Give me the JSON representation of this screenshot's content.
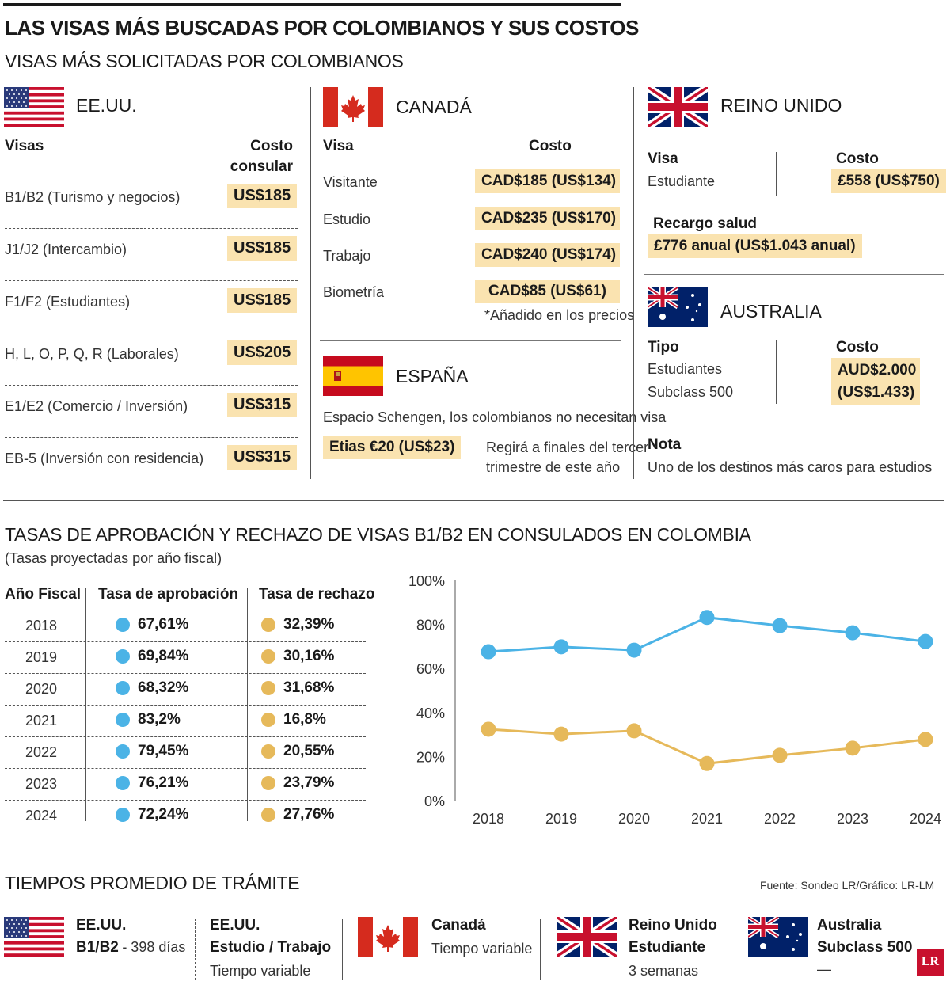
{
  "title": "LAS VISAS MÁS BUSCADAS POR COLOMBIANOS Y SUS COSTOS",
  "section1_title": "VISAS MÁS SOLICITADAS POR COLOMBIANOS",
  "usa": {
    "country": "EE.UU.",
    "col_visa": "Visas",
    "col_cost_1": "Costo",
    "col_cost_2": "consular",
    "rows": [
      {
        "visa": "B1/B2 (Turismo y negocios)",
        "cost": "US$185"
      },
      {
        "visa": "J1/J2 (Intercambio)",
        "cost": "US$185"
      },
      {
        "visa": "F1/F2 (Estudiantes)",
        "cost": "US$185"
      },
      {
        "visa": "H, L, O, P, Q, R (Laborales)",
        "cost": "US$205"
      },
      {
        "visa": "E1/E2 (Comercio / Inversión)",
        "cost": "US$315"
      },
      {
        "visa": "EB-5 (Inversión con residencia)",
        "cost": "US$315"
      }
    ]
  },
  "canada": {
    "country": "CANADÁ",
    "col_visa": "Visa",
    "col_cost": "Costo",
    "rows": [
      {
        "visa": "Visitante",
        "cost": "CAD$185 (US$134)"
      },
      {
        "visa": "Estudio",
        "cost": "CAD$235 (US$170)"
      },
      {
        "visa": "Trabajo",
        "cost": "CAD$240 (US$174)"
      },
      {
        "visa": "Biometría",
        "cost": "CAD$85 (US$61)"
      }
    ],
    "note": "*Añadido en los precios"
  },
  "spain": {
    "country": "ESPAÑA",
    "text": "Espacio Schengen, los colombianos no necesitan visa",
    "cost": "Etias €20 (US$23)",
    "note_1": "Regirá a finales del tercer",
    "note_2": "trimestre de este año"
  },
  "uk": {
    "country": "REINO UNIDO",
    "col_visa": "Visa",
    "visa": "Estudiante",
    "col_cost": "Costo",
    "cost": "£558 (US$750)",
    "surcharge_label": "Recargo salud",
    "surcharge": "£776 anual (US$1.043 anual)"
  },
  "australia": {
    "country": "AUSTRALIA",
    "col_type": "Tipo",
    "type_1": "Estudiantes",
    "type_2": "Subclass 500",
    "col_cost": "Costo",
    "cost_1": "AUD$2.000",
    "cost_2": "(US$1.433)",
    "note_label": "Nota",
    "note": "Uno de los destinos más caros para estudios"
  },
  "section2_title": "TASAS DE APROBACIÓN Y RECHAZO DE VISAS B1/B2 EN CONSULADOS EN COLOMBIA",
  "section2_subtitle": "(Tasas proyectadas por año fiscal)",
  "table": {
    "col_year": "Año Fiscal",
    "col_approval": "Tasa de aprobación",
    "col_rejection": "Tasa de rechazo",
    "rows": [
      {
        "year": "2018",
        "approval": "67,61%",
        "rejection": "32,39%"
      },
      {
        "year": "2019",
        "approval": "69,84%",
        "rejection": "30,16%"
      },
      {
        "year": "2020",
        "approval": "68,32%",
        "rejection": "31,68%"
      },
      {
        "year": "2021",
        "approval": "83,2%",
        "rejection": "16,8%"
      },
      {
        "year": "2022",
        "approval": "79,45%",
        "rejection": "20,55%"
      },
      {
        "year": "2023",
        "approval": "76,21%",
        "rejection": "23,79%"
      },
      {
        "year": "2024",
        "approval": "72,24%",
        "rejection": "27,76%"
      }
    ]
  },
  "chart_data": {
    "type": "line",
    "x": [
      "2018",
      "2019",
      "2020",
      "2021",
      "2022",
      "2023",
      "2024"
    ],
    "series": [
      {
        "name": "Tasa de aprobación",
        "values": [
          67.61,
          69.84,
          68.32,
          83.2,
          79.45,
          76.21,
          72.24
        ],
        "color": "#4bb3e6"
      },
      {
        "name": "Tasa de rechazo",
        "values": [
          32.39,
          30.16,
          31.68,
          16.8,
          20.55,
          23.79,
          27.76
        ],
        "color": "#e6b95a"
      }
    ],
    "ylim": [
      0,
      100
    ],
    "yticks": [
      "0%",
      "20%",
      "40%",
      "60%",
      "80%",
      "100%"
    ],
    "grid": false
  },
  "section3_title": "TIEMPOS PROMEDIO DE TRÁMITE",
  "source": "Fuente: Sondeo LR/Gráfico: LR-LM",
  "times": {
    "usa_b1b2_label_1": "EE.UU.",
    "usa_b1b2_label_2": "B1/B2",
    "usa_b1b2_value": "- 398 días",
    "usa_study_label_1": "EE.UU.",
    "usa_study_label_2": "Estudio / Trabajo",
    "usa_study_value": "Tiempo variable",
    "canada_label": "Canadá",
    "canada_value": "Tiempo variable",
    "uk_label_1": "Reino Unido",
    "uk_label_2": "Estudiante",
    "uk_value": "3 semanas",
    "aus_label_1": "Australia",
    "aus_label_2": "Subclass 500",
    "aus_value": "—"
  },
  "logo": "LR",
  "colors": {
    "highlight": "#fae3b0",
    "approval": "#4bb3e6",
    "rejection": "#e6b95a"
  },
  "icons": [
    "us-flag-icon",
    "canada-flag-icon",
    "spain-flag-icon",
    "uk-flag-icon",
    "australia-flag-icon"
  ]
}
